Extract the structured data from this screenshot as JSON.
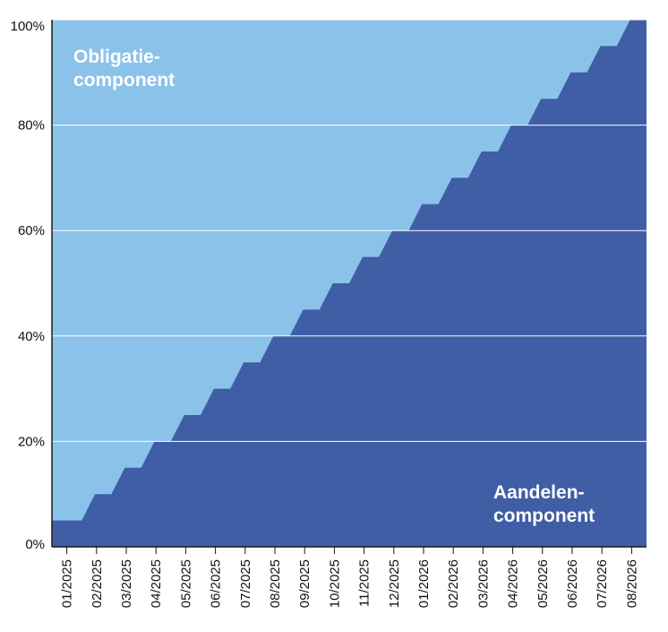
{
  "chart_data": {
    "type": "area",
    "stacked": true,
    "percent_stacked": true,
    "x": [
      "01/2025",
      "02/2025",
      "03/2025",
      "04/2025",
      "05/2025",
      "06/2025",
      "07/2025",
      "08/2025",
      "09/2025",
      "10/2025",
      "11/2025",
      "12/2025",
      "01/2026",
      "02/2026",
      "03/2026",
      "04/2026",
      "05/2026",
      "06/2026",
      "07/2026",
      "08/2026"
    ],
    "series": [
      {
        "name": "Aandelen-component",
        "label_lines": [
          "Aandelen-",
          "component"
        ],
        "color": "#3f5ea6",
        "values": [
          5,
          10,
          15,
          20,
          25,
          30,
          35,
          40,
          45,
          50,
          55,
          60,
          65,
          70,
          75,
          80,
          85,
          90,
          95,
          100
        ]
      },
      {
        "name": "Obligatie-component",
        "label_lines": [
          "Obligatie-",
          "component"
        ],
        "color": "#8bc2ea",
        "values": [
          95,
          90,
          85,
          80,
          75,
          70,
          65,
          60,
          55,
          50,
          45,
          40,
          35,
          30,
          25,
          20,
          15,
          10,
          5,
          0
        ]
      }
    ],
    "y_ticks": [
      "0%",
      "20%",
      "40%",
      "60%",
      "80%",
      "100%"
    ],
    "ylim": [
      0,
      100
    ],
    "grid": true,
    "grid_color": "#ffffff",
    "axis_color": "#1a1a1a",
    "step_shape": "stepped"
  }
}
